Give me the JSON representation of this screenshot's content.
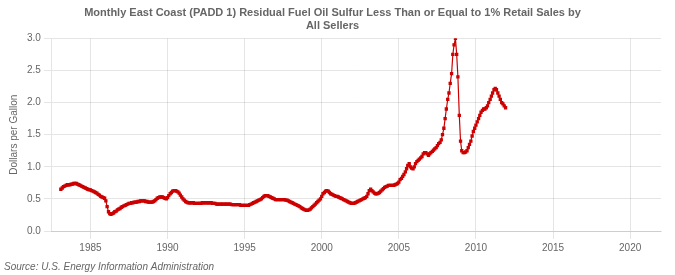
{
  "chart_data": {
    "type": "line",
    "title": "Monthly East Coast (PADD 1) Residual Fuel Oil Sulfur Less Than or Equal to 1% Retail Sales by\nAll Sellers",
    "ylabel": "Dollars per Gallon",
    "annotations": [
      "Source: U.S. Energy Information Administration"
    ],
    "color": "#cc0000",
    "marker": "square",
    "line_style": "solid",
    "grid": true,
    "xlim": [
      1982.5,
      2022
    ],
    "ylim": [
      0.0,
      3.0
    ],
    "xticks": [
      1985,
      1990,
      1995,
      2000,
      2005,
      2010,
      2015,
      2020
    ],
    "yticks": [
      {
        "value": 0.0,
        "label": "0.0"
      },
      0.5,
      {
        "value": 1.0,
        "label": "1.0"
      },
      1.5,
      {
        "value": 2.0,
        "label": "2.0"
      },
      2.5,
      {
        "value": 3.0,
        "label": "3.0"
      }
    ],
    "x": [
      1983.08,
      1983.17,
      1983.25,
      1983.33,
      1983.42,
      1983.5,
      1983.58,
      1983.67,
      1983.75,
      1983.83,
      1983.92,
      1984.0,
      1984.08,
      1984.17,
      1984.25,
      1984.33,
      1984.42,
      1984.5,
      1984.58,
      1984.67,
      1984.75,
      1984.83,
      1984.92,
      1985.0,
      1985.08,
      1985.17,
      1985.25,
      1985.33,
      1985.42,
      1985.5,
      1985.58,
      1985.67,
      1985.75,
      1985.83,
      1985.92,
      1986.0,
      1986.08,
      1986.17,
      1986.25,
      1986.33,
      1986.42,
      1986.5,
      1986.58,
      1986.67,
      1986.75,
      1986.83,
      1986.92,
      1987.0,
      1987.08,
      1987.17,
      1987.25,
      1987.33,
      1987.42,
      1987.5,
      1987.58,
      1987.67,
      1987.75,
      1987.83,
      1987.92,
      1988.0,
      1988.08,
      1988.17,
      1988.25,
      1988.33,
      1988.42,
      1988.5,
      1988.58,
      1988.67,
      1988.75,
      1988.83,
      1988.92,
      1989.0,
      1989.08,
      1989.17,
      1989.25,
      1989.33,
      1989.42,
      1989.5,
      1989.58,
      1989.67,
      1989.75,
      1989.83,
      1989.92,
      1990.0,
      1990.08,
      1990.17,
      1990.25,
      1990.33,
      1990.42,
      1990.5,
      1990.58,
      1990.67,
      1990.75,
      1990.83,
      1990.92,
      1991.0,
      1991.08,
      1991.17,
      1991.25,
      1991.33,
      1991.42,
      1991.5,
      1991.58,
      1991.67,
      1991.75,
      1991.83,
      1991.92,
      1992.0,
      1992.08,
      1992.17,
      1992.25,
      1992.33,
      1992.42,
      1992.5,
      1992.58,
      1992.67,
      1992.75,
      1992.83,
      1992.92,
      1993.0,
      1993.08,
      1993.17,
      1993.25,
      1993.33,
      1993.42,
      1993.5,
      1993.58,
      1993.67,
      1993.75,
      1993.83,
      1993.92,
      1994.0,
      1994.08,
      1994.17,
      1994.25,
      1994.33,
      1994.42,
      1994.5,
      1994.58,
      1994.67,
      1994.75,
      1994.83,
      1994.92,
      1995.0,
      1995.08,
      1995.17,
      1995.25,
      1995.33,
      1995.42,
      1995.5,
      1995.58,
      1995.67,
      1995.75,
      1995.83,
      1995.92,
      1996.0,
      1996.08,
      1996.17,
      1996.25,
      1996.33,
      1996.42,
      1996.5,
      1996.58,
      1996.67,
      1996.75,
      1996.83,
      1996.92,
      1997.0,
      1997.08,
      1997.17,
      1997.25,
      1997.33,
      1997.42,
      1997.5,
      1997.58,
      1997.67,
      1997.75,
      1997.83,
      1997.92,
      1998.0,
      1998.08,
      1998.17,
      1998.25,
      1998.33,
      1998.42,
      1998.5,
      1998.58,
      1998.67,
      1998.75,
      1998.83,
      1998.92,
      1999.0,
      1999.08,
      1999.17,
      1999.25,
      1999.33,
      1999.42,
      1999.5,
      1999.58,
      1999.67,
      1999.75,
      1999.83,
      1999.92,
      2000.0,
      2000.08,
      2000.17,
      2000.25,
      2000.33,
      2000.42,
      2000.5,
      2000.58,
      2000.67,
      2000.75,
      2000.83,
      2000.92,
      2001.0,
      2001.08,
      2001.17,
      2001.25,
      2001.33,
      2001.42,
      2001.5,
      2001.58,
      2001.67,
      2001.75,
      2001.83,
      2001.92,
      2002.0,
      2002.08,
      2002.17,
      2002.25,
      2002.33,
      2002.42,
      2002.5,
      2002.58,
      2002.67,
      2002.75,
      2002.83,
      2002.92,
      2003.0,
      2003.08,
      2003.17,
      2003.25,
      2003.33,
      2003.42,
      2003.5,
      2003.58,
      2003.67,
      2003.75,
      2003.83,
      2003.92,
      2004.0,
      2004.08,
      2004.17,
      2004.25,
      2004.33,
      2004.42,
      2004.5,
      2004.58,
      2004.67,
      2004.75,
      2004.83,
      2004.92,
      2005.0,
      2005.08,
      2005.17,
      2005.25,
      2005.33,
      2005.42,
      2005.5,
      2005.58,
      2005.67,
      2005.75,
      2005.83,
      2005.92,
      2006.0,
      2006.08,
      2006.17,
      2006.25,
      2006.33,
      2006.42,
      2006.5,
      2006.58,
      2006.67,
      2006.75,
      2006.83,
      2006.92,
      2007.0,
      2007.08,
      2007.17,
      2007.25,
      2007.33,
      2007.42,
      2007.5,
      2007.58,
      2007.67,
      2007.75,
      2007.83,
      2007.92,
      2008.0,
      2008.08,
      2008.17,
      2008.25,
      2008.33,
      2008.42,
      2008.5,
      2008.58,
      2008.67,
      2008.75,
      2008.83,
      2008.92,
      2009.0,
      2009.08,
      2009.17,
      2009.25,
      2009.33,
      2009.42,
      2009.5,
      2009.58,
      2009.67,
      2009.75,
      2009.83,
      2009.92,
      2010.0,
      2010.08,
      2010.17,
      2010.25,
      2010.33,
      2010.42,
      2010.5,
      2010.58,
      2010.67,
      2010.75,
      2010.83,
      2010.92,
      2011.0,
      2011.08,
      2011.17,
      2011.25,
      2011.33,
      2011.42,
      2011.5,
      2011.58,
      2011.67,
      2011.75,
      2011.83,
      2011.92
    ],
    "values": [
      0.65,
      0.67,
      0.69,
      0.7,
      0.71,
      0.72,
      0.72,
      0.72,
      0.73,
      0.73,
      0.74,
      0.74,
      0.74,
      0.73,
      0.72,
      0.71,
      0.7,
      0.69,
      0.68,
      0.67,
      0.66,
      0.65,
      0.64,
      0.64,
      0.63,
      0.62,
      0.61,
      0.6,
      0.59,
      0.57,
      0.56,
      0.54,
      0.53,
      0.52,
      0.51,
      0.47,
      0.38,
      0.3,
      0.27,
      0.26,
      0.27,
      0.28,
      0.3,
      0.31,
      0.33,
      0.34,
      0.35,
      0.37,
      0.38,
      0.39,
      0.4,
      0.41,
      0.42,
      0.43,
      0.43,
      0.44,
      0.44,
      0.45,
      0.45,
      0.45,
      0.46,
      0.46,
      0.47,
      0.47,
      0.47,
      0.47,
      0.46,
      0.46,
      0.45,
      0.45,
      0.45,
      0.45,
      0.46,
      0.47,
      0.49,
      0.51,
      0.52,
      0.53,
      0.53,
      0.53,
      0.52,
      0.51,
      0.5,
      0.52,
      0.55,
      0.58,
      0.6,
      0.62,
      0.63,
      0.63,
      0.62,
      0.61,
      0.59,
      0.56,
      0.53,
      0.5,
      0.48,
      0.46,
      0.45,
      0.44,
      0.44,
      0.44,
      0.44,
      0.44,
      0.43,
      0.43,
      0.43,
      0.43,
      0.43,
      0.43,
      0.44,
      0.44,
      0.44,
      0.44,
      0.44,
      0.44,
      0.44,
      0.44,
      0.43,
      0.43,
      0.43,
      0.42,
      0.42,
      0.42,
      0.42,
      0.42,
      0.42,
      0.42,
      0.42,
      0.42,
      0.42,
      0.42,
      0.42,
      0.41,
      0.41,
      0.41,
      0.41,
      0.41,
      0.41,
      0.41,
      0.4,
      0.4,
      0.4,
      0.4,
      0.4,
      0.4,
      0.4,
      0.41,
      0.42,
      0.43,
      0.44,
      0.45,
      0.46,
      0.47,
      0.48,
      0.49,
      0.5,
      0.52,
      0.54,
      0.55,
      0.55,
      0.55,
      0.54,
      0.53,
      0.52,
      0.51,
      0.5,
      0.49,
      0.49,
      0.49,
      0.49,
      0.49,
      0.49,
      0.49,
      0.49,
      0.48,
      0.48,
      0.47,
      0.46,
      0.45,
      0.44,
      0.43,
      0.42,
      0.41,
      0.4,
      0.39,
      0.38,
      0.36,
      0.35,
      0.34,
      0.33,
      0.32,
      0.32,
      0.33,
      0.34,
      0.36,
      0.38,
      0.4,
      0.42,
      0.44,
      0.46,
      0.48,
      0.5,
      0.54,
      0.58,
      0.6,
      0.62,
      0.63,
      0.62,
      0.6,
      0.58,
      0.57,
      0.56,
      0.55,
      0.54,
      0.54,
      0.53,
      0.52,
      0.51,
      0.5,
      0.49,
      0.48,
      0.47,
      0.46,
      0.45,
      0.44,
      0.43,
      0.43,
      0.43,
      0.44,
      0.45,
      0.46,
      0.47,
      0.48,
      0.49,
      0.5,
      0.51,
      0.52,
      0.54,
      0.58,
      0.63,
      0.65,
      0.63,
      0.61,
      0.59,
      0.58,
      0.58,
      0.59,
      0.6,
      0.62,
      0.64,
      0.66,
      0.68,
      0.69,
      0.7,
      0.71,
      0.71,
      0.71,
      0.71,
      0.71,
      0.72,
      0.73,
      0.74,
      0.76,
      0.8,
      0.82,
      0.85,
      0.88,
      0.92,
      0.97,
      1.02,
      1.05,
      1.0,
      0.98,
      0.97,
      1.0,
      1.05,
      1.08,
      1.1,
      1.12,
      1.14,
      1.16,
      1.2,
      1.22,
      1.22,
      1.2,
      1.18,
      1.2,
      1.22,
      1.24,
      1.26,
      1.28,
      1.3,
      1.33,
      1.36,
      1.38,
      1.42,
      1.5,
      1.6,
      1.75,
      1.9,
      2.05,
      2.15,
      2.3,
      2.45,
      2.75,
      2.9,
      3.0,
      2.75,
      2.4,
      1.8,
      1.4,
      1.25,
      1.22,
      1.22,
      1.23,
      1.25,
      1.3,
      1.35,
      1.4,
      1.48,
      1.55,
      1.6,
      1.65,
      1.7,
      1.75,
      1.8,
      1.85,
      1.88,
      1.9,
      1.9,
      1.92,
      1.95,
      2.0,
      2.05,
      2.1,
      2.15,
      2.2,
      2.22,
      2.2,
      2.15,
      2.1,
      2.05,
      2.0,
      1.98,
      1.95,
      1.92
    ]
  }
}
